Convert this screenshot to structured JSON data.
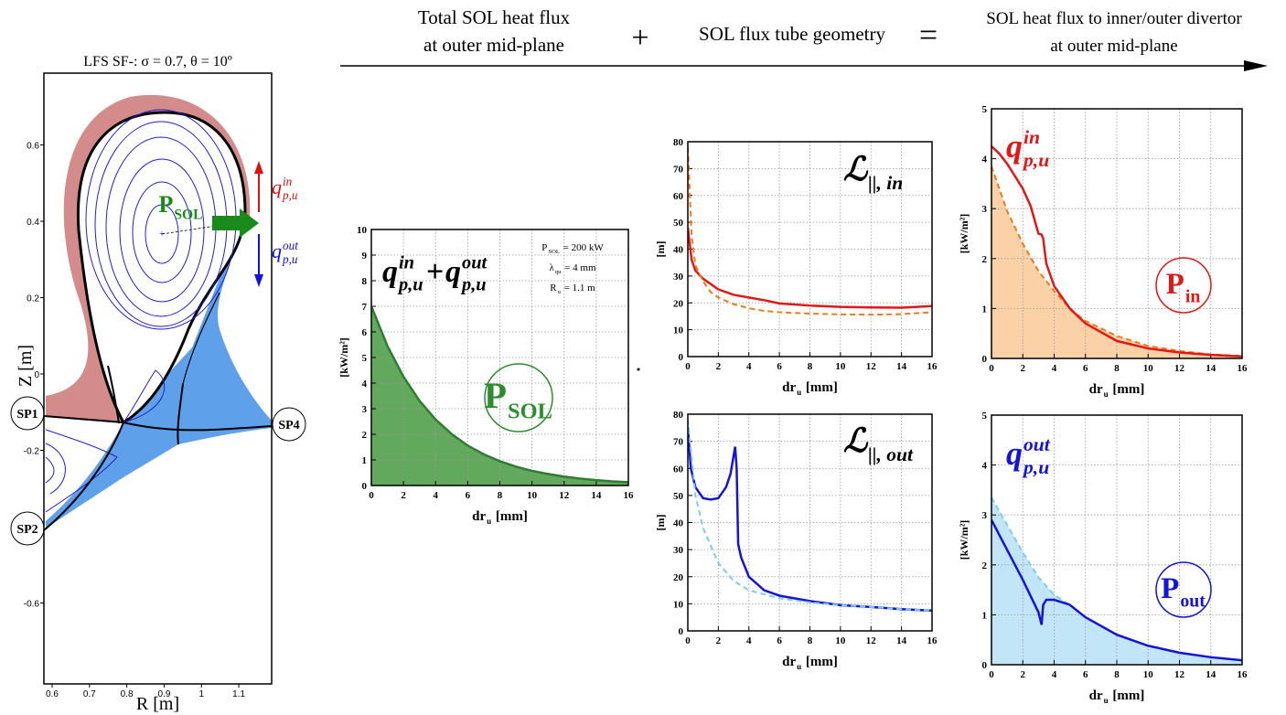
{
  "header": {
    "left": [
      "Total SOL heat flux",
      "at outer mid-plane"
    ],
    "plus": "+",
    "middle": "SOL flux tube geometry",
    "equals": "=",
    "right": [
      "SOL heat flux to inner/outer divertor",
      "at outer mid-plane"
    ]
  },
  "chart_data": [
    {
      "type": "equilibrium",
      "title": "LFS SF-: σ = 0.7, θ = 10º",
      "xlabel": "R [m]",
      "ylabel": "Z [m]",
      "xlim": [
        0.578,
        1.188
      ],
      "ylim": [
        -0.812,
        0.788
      ],
      "xticks": [
        0.6,
        0.7,
        0.8,
        0.9,
        1,
        1.1
      ],
      "yticks": [
        0.6,
        0.4,
        0.2,
        0,
        -0.2,
        -0.6
      ],
      "strike_points": [
        "SP1",
        "SP2",
        "SP4"
      ],
      "power_label": {
        "main": "P",
        "sub": "SOL",
        "color": "#1a8a1a"
      },
      "flux_labels": [
        {
          "main": "q",
          "sup": "in",
          "sub": "p,u",
          "color": "#e01010"
        },
        {
          "main": "q",
          "sup": "out",
          "sub": "p,u",
          "color": "#1010e0"
        }
      ]
    },
    {
      "type": "area",
      "formula": [
        {
          "main": "q",
          "sup": "in",
          "sub": "p,u"
        },
        "+",
        {
          "main": "q",
          "sup": "out",
          "sub": "p,u"
        }
      ],
      "annotations": [
        {
          "main": "P",
          "sub": "SOL",
          "after": " = 200 kW"
        },
        {
          "main": "λ",
          "sub": "qu",
          "after": " = 4 mm"
        },
        {
          "main": "R",
          "sub": "u",
          "after": " = 1.1 m"
        }
      ],
      "circle_label": {
        "main": "P",
        "sub": "SOL",
        "color": "#2e8b2e"
      },
      "xlabel": {
        "main": "dr",
        "sub": "u",
        "after": " [mm]"
      },
      "ylabel": "[kW/m²]",
      "xlim": [
        0,
        16
      ],
      "xticks": [
        0,
        2,
        4,
        6,
        8,
        10,
        12,
        14,
        16
      ],
      "ylim": [
        0,
        10
      ],
      "yticks": [
        0,
        1,
        2,
        3,
        4,
        5,
        6,
        7,
        8,
        9,
        10
      ],
      "grid": true,
      "series": [
        {
          "color": "#2e7d32",
          "fill": "#63a95d",
          "x": [
            0,
            1,
            2,
            3,
            4,
            5,
            6,
            7,
            8,
            9,
            10,
            11,
            12,
            13,
            14,
            15,
            16
          ],
          "values": [
            7,
            5.45,
            4.25,
            3.31,
            2.58,
            2.01,
            1.56,
            1.22,
            0.95,
            0.74,
            0.57,
            0.45,
            0.35,
            0.27,
            0.21,
            0.16,
            0.13
          ]
        }
      ]
    },
    {
      "type": "line",
      "label": {
        "main": "ℒ",
        "sub": "||, in"
      },
      "xlabel": {
        "main": "dr",
        "sub": "u",
        "after": " [mm]"
      },
      "ylabel": "[m]",
      "xlim": [
        0,
        16
      ],
      "xticks": [
        0,
        2,
        4,
        6,
        8,
        10,
        12,
        14,
        16
      ],
      "ylim": [
        0,
        80
      ],
      "yticks": [
        0,
        10,
        20,
        30,
        40,
        50,
        60,
        70,
        80
      ],
      "grid": true,
      "series": [
        {
          "color": "#e01818",
          "x": [
            0,
            0.25,
            0.5,
            1,
            1.5,
            2,
            3,
            4,
            5,
            6,
            8,
            10,
            12,
            14,
            16
          ],
          "values": [
            48,
            36,
            32,
            29,
            27,
            25,
            23,
            22,
            21,
            19.8,
            19,
            18.5,
            18.3,
            18.2,
            18.8
          ]
        },
        {
          "color": "#f07a1a",
          "dashed": true,
          "x": [
            0,
            0.25,
            0.5,
            1,
            1.5,
            2,
            3,
            4,
            5,
            6,
            8,
            10,
            12,
            14,
            16
          ],
          "values": [
            78,
            45,
            34,
            28,
            24,
            22,
            19.5,
            18,
            17,
            16.5,
            16,
            15.7,
            15.6,
            15.8,
            16.5
          ]
        }
      ]
    },
    {
      "type": "line",
      "label": {
        "main": "ℒ",
        "sub": "||, out"
      },
      "xlabel": {
        "main": "dr",
        "sub": "u",
        "after": " [mm]"
      },
      "ylabel": "[m]",
      "xlim": [
        0,
        16
      ],
      "xticks": [
        0,
        2,
        4,
        6,
        8,
        10,
        12,
        14,
        16
      ],
      "ylim": [
        0,
        80
      ],
      "yticks": [
        0,
        10,
        20,
        30,
        40,
        50,
        60,
        70,
        80
      ],
      "grid": true,
      "series": [
        {
          "color": "#1414d8",
          "x": [
            0,
            0.2,
            0.5,
            1,
            1.5,
            2,
            2.5,
            2.8,
            3.1,
            3.2,
            3.3,
            3.5,
            4,
            5,
            6,
            8,
            10,
            12,
            14,
            16
          ],
          "values": [
            75,
            60,
            53,
            49,
            48.5,
            49,
            53,
            58,
            68,
            60,
            32,
            27,
            20,
            15,
            13,
            11,
            9.5,
            8.8,
            8,
            7.5
          ]
        },
        {
          "color": "#7fcbef",
          "dashed": true,
          "x": [
            0,
            0.5,
            1,
            2,
            3,
            4,
            6,
            8,
            10,
            12,
            14,
            16
          ],
          "values": [
            78,
            50,
            38,
            25,
            18.5,
            15,
            12,
            10.5,
            9.5,
            8.8,
            8,
            7.5
          ]
        }
      ]
    },
    {
      "type": "area",
      "label": {
        "main": "q",
        "sup": "in",
        "sub": "p,u",
        "color": "#e01818"
      },
      "circle_label": {
        "main": "P",
        "sub": "in",
        "color": "#e01818"
      },
      "xlabel": {
        "main": "dr",
        "sub": "u",
        "after": " [mm]"
      },
      "ylabel": "[kW/m²]",
      "xlim": [
        0,
        16
      ],
      "xticks": [
        0,
        2,
        4,
        6,
        8,
        10,
        12,
        14,
        16
      ],
      "ylim": [
        0,
        5
      ],
      "yticks": [
        0,
        1,
        2,
        3,
        4,
        5
      ],
      "grid": true,
      "series": [
        {
          "color": "#f07a1a",
          "fill": "#fbd2a8",
          "dashed": true,
          "x": [
            0,
            1,
            2,
            3,
            4,
            5,
            6,
            8,
            10,
            12,
            14,
            16
          ],
          "values": [
            3.85,
            2.95,
            2.3,
            1.75,
            1.35,
            1,
            0.75,
            0.45,
            0.25,
            0.15,
            0.08,
            0.05
          ]
        },
        {
          "color": "#e01818",
          "x": [
            0,
            0.5,
            1,
            2,
            2.5,
            3,
            3.2,
            3.3,
            3.5,
            4,
            5,
            6,
            8,
            10,
            12,
            14,
            16
          ],
          "values": [
            4.25,
            4.1,
            3.9,
            3.4,
            3.05,
            2.5,
            2.48,
            2.4,
            1.9,
            1.45,
            1,
            0.7,
            0.35,
            0.2,
            0.12,
            0.07,
            0.04
          ]
        }
      ]
    },
    {
      "type": "area",
      "label": {
        "main": "q",
        "sup": "out",
        "sub": "p,u",
        "color": "#1414d8"
      },
      "circle_label": {
        "main": "P",
        "sub": "out",
        "color": "#1414d8"
      },
      "xlabel": {
        "main": "dr",
        "sub": "u",
        "after": " [mm]"
      },
      "ylabel": "[kW/m²]",
      "xlim": [
        0,
        16
      ],
      "xticks": [
        0,
        2,
        4,
        6,
        8,
        10,
        12,
        14,
        16
      ],
      "ylim": [
        0,
        5
      ],
      "yticks": [
        0,
        1,
        2,
        3,
        4,
        5
      ],
      "grid": true,
      "series": [
        {
          "color": "#7fcbef",
          "fill": "#c2e5f8",
          "dashed": true,
          "x": [
            0,
            1,
            2,
            3,
            4,
            5,
            6,
            8,
            10,
            12,
            14,
            16
          ],
          "values": [
            3.35,
            2.8,
            2.25,
            1.75,
            1.4,
            1.2,
            0.95,
            0.6,
            0.38,
            0.24,
            0.15,
            0.09
          ]
        },
        {
          "color": "#1414d8",
          "x": [
            0,
            1,
            2,
            3,
            3.2,
            3.3,
            3.5,
            4,
            5,
            6,
            8,
            10,
            12,
            14,
            16
          ],
          "values": [
            2.9,
            2.3,
            1.7,
            1.05,
            0.8,
            1.2,
            1.3,
            1.3,
            1.2,
            0.95,
            0.6,
            0.38,
            0.24,
            0.15,
            0.09
          ]
        }
      ]
    }
  ]
}
